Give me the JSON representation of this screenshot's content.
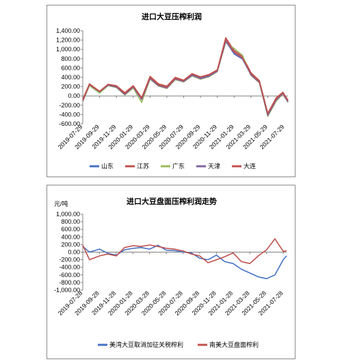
{
  "chart_data": [
    {
      "type": "line",
      "title": "进口大豆压榨利润",
      "ylabel": "",
      "xlabel": "",
      "ylim": [
        -600,
        1400
      ],
      "yticks": [
        -600,
        -400,
        -200,
        0,
        200,
        400,
        600,
        800,
        1000,
        1200,
        1400
      ],
      "ytick_labels": [
        "-600.00",
        "-400.00",
        "-200.00",
        "0.00",
        "200.00",
        "400.00",
        "600.00",
        "800.00",
        "1,000.00",
        "1,200.00",
        "1,400.00"
      ],
      "xtick_labels": [
        "2019-07-29",
        "2019-09-29",
        "2019-11-29",
        "2020-01-29",
        "2020-03-29",
        "2020-05-29",
        "2020-07-29",
        "2020-09-29",
        "2020-11-29",
        "2021-01-29",
        "2021-03-29",
        "2021-05-29",
        "2021-07-29"
      ],
      "legend_position": "bottom",
      "x": [
        0,
        0.4,
        1,
        1.5,
        2,
        2.5,
        3,
        3.5,
        4,
        4.5,
        5,
        5.5,
        6,
        6.5,
        7,
        7.5,
        8,
        8.5,
        9,
        9.5,
        10,
        10.5,
        11,
        11.5,
        11.9,
        12.2
      ],
      "series": [
        {
          "name": "山东",
          "color": "#4472C4",
          "values": [
            -100,
            230,
            80,
            240,
            200,
            40,
            200,
            -60,
            380,
            230,
            180,
            370,
            320,
            450,
            380,
            430,
            540,
            1180,
            900,
            790,
            460,
            300,
            -400,
            -80,
            60,
            -120
          ]
        },
        {
          "name": "江苏",
          "color": "#C0504D",
          "values": [
            -70,
            260,
            100,
            250,
            220,
            70,
            220,
            -40,
            420,
            260,
            210,
            400,
            340,
            480,
            410,
            460,
            560,
            1250,
            980,
            850,
            500,
            330,
            -370,
            -40,
            80,
            -90
          ]
        },
        {
          "name": "广东",
          "color": "#9BBB59",
          "values": [
            -120,
            220,
            60,
            220,
            180,
            20,
            170,
            -140,
            360,
            210,
            160,
            350,
            300,
            430,
            360,
            410,
            520,
            1150,
            1020,
            870,
            440,
            280,
            -440,
            -110,
            40,
            -140
          ]
        },
        {
          "name": "天津",
          "color": "#8064A2",
          "values": [
            -110,
            240,
            90,
            230,
            190,
            30,
            190,
            -80,
            370,
            220,
            170,
            360,
            310,
            440,
            370,
            420,
            530,
            1170,
            920,
            800,
            450,
            290,
            -420,
            -90,
            50,
            -130
          ]
        },
        {
          "name": "大连",
          "color": "#C0504D",
          "values": [
            -90,
            250,
            95,
            245,
            210,
            50,
            210,
            -50,
            400,
            240,
            190,
            380,
            330,
            470,
            400,
            450,
            550,
            1220,
            950,
            820,
            480,
            310,
            -380,
            -60,
            70,
            -100
          ]
        }
      ]
    },
    {
      "type": "line",
      "title": "进口大豆盘面压榨利润走势",
      "ylabel": "元/吨",
      "xlabel": "",
      "ylim": [
        -1000,
        1000
      ],
      "yticks": [
        -1000,
        -800,
        -600,
        -400,
        -200,
        0,
        200,
        400,
        600,
        800,
        1000
      ],
      "ytick_labels": [
        "-1,000.00",
        "-800.00",
        "-600.00",
        "-400.00",
        "-200.00",
        "0.00",
        "200.00",
        "400.00",
        "600.00",
        "800.00",
        "1,000.00"
      ],
      "xtick_labels": [
        "2019-07-28",
        "2019-09-28",
        "2019-11-28",
        "2020-01-28",
        "2020-03-28",
        "2020-05-28",
        "2020-07-28",
        "2020-09-28",
        "2020-11-28",
        "2021-01-28",
        "2021-03-28",
        "2021-05-28",
        "2021-07-28"
      ],
      "legend_position": "bottom",
      "x": [
        0,
        0.4,
        1,
        1.5,
        2,
        2.5,
        3,
        3.5,
        4,
        4.5,
        5,
        5.5,
        6,
        6.5,
        7,
        7.5,
        8,
        8.5,
        9,
        9.5,
        10,
        10.5,
        11,
        11.5,
        12,
        12.2
      ],
      "series": [
        {
          "name": "美湾大豆取消加征关税榨利",
          "color": "#4472C4",
          "values": [
            150,
            0,
            80,
            -30,
            -80,
            60,
            100,
            120,
            80,
            180,
            50,
            40,
            0,
            -20,
            -160,
            -200,
            -80,
            -250,
            -300,
            -450,
            -550,
            -650,
            -700,
            -600,
            -200,
            -100
          ]
        },
        {
          "name": "南美大豆盘面榨利",
          "color": "#C0504D",
          "values": [
            180,
            -200,
            -100,
            -50,
            -100,
            120,
            170,
            150,
            190,
            150,
            100,
            80,
            30,
            -50,
            -100,
            -280,
            -200,
            -120,
            -20,
            -250,
            -300,
            -100,
            60,
            350,
            20,
            40
          ]
        }
      ]
    }
  ]
}
